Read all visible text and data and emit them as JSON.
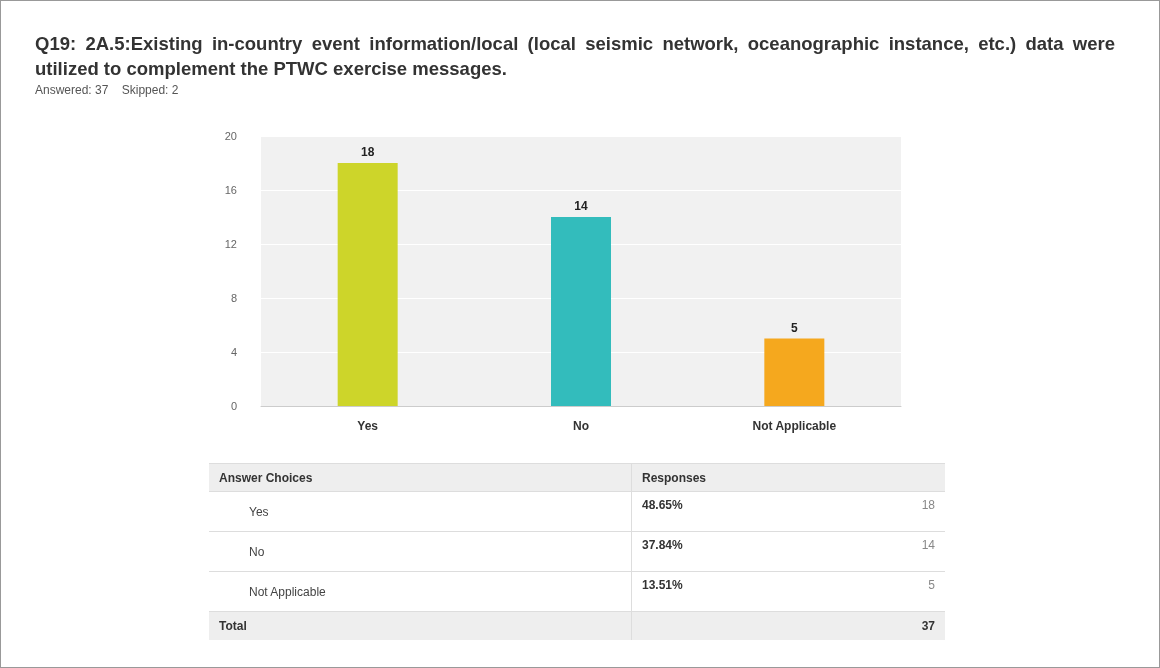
{
  "chart_data": {
    "type": "bar",
    "title": "Q19: 2A.5:Existing in-country event information/local (local seismic network, oceanographic instance, etc.) data were utilized to complement the PTWC exercise messages.",
    "subtitle": "Answered: 37    Skipped: 2",
    "categories": [
      "Yes",
      "No",
      "Not Applicable"
    ],
    "values": [
      18,
      14,
      5
    ],
    "colors": [
      "#cdd52a",
      "#33bcbc",
      "#f5a81e"
    ],
    "ylim": [
      0,
      20
    ],
    "yticks": [
      0,
      4,
      8,
      12,
      16,
      20
    ],
    "grid": "y",
    "data_labels": true,
    "annotations": [
      "Answer Choices",
      "Responses",
      "48.65%",
      "18",
      "37.84%",
      "14",
      "13.51%",
      "5",
      "Total",
      "37"
    ]
  }
}
